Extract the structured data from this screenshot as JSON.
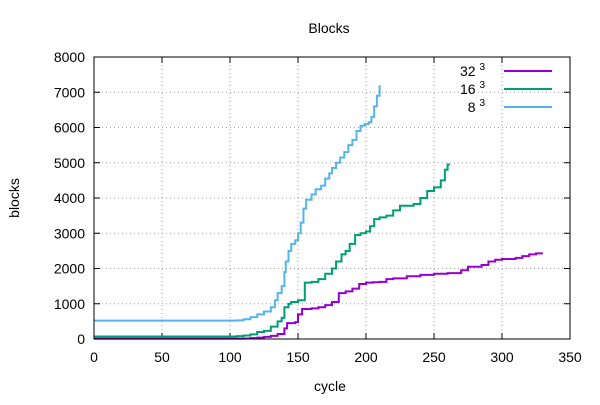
{
  "chart_data": {
    "type": "line",
    "title": "Blocks",
    "xlabel": "cycle",
    "ylabel": "blocks",
    "xlim": [
      0,
      350
    ],
    "ylim": [
      0,
      8000
    ],
    "x_ticks": [
      0,
      50,
      100,
      150,
      200,
      250,
      300,
      350
    ],
    "y_ticks": [
      0,
      1000,
      2000,
      3000,
      4000,
      5000,
      6000,
      7000,
      8000
    ],
    "grid": true,
    "grid_style": "dotted",
    "legend_position": "top-right",
    "series": [
      {
        "name": "32",
        "superscript": "3",
        "color": "#9400d3",
        "points": [
          [
            0,
            10
          ],
          [
            105,
            10
          ],
          [
            110,
            15
          ],
          [
            115,
            25
          ],
          [
            120,
            40
          ],
          [
            125,
            60
          ],
          [
            130,
            90
          ],
          [
            135,
            140
          ],
          [
            140,
            300
          ],
          [
            142,
            450
          ],
          [
            148,
            480
          ],
          [
            150,
            700
          ],
          [
            153,
            850
          ],
          [
            160,
            870
          ],
          [
            165,
            900
          ],
          [
            170,
            960
          ],
          [
            175,
            1050
          ],
          [
            180,
            1300
          ],
          [
            185,
            1350
          ],
          [
            190,
            1430
          ],
          [
            195,
            1560
          ],
          [
            200,
            1600
          ],
          [
            205,
            1610
          ],
          [
            210,
            1620
          ],
          [
            215,
            1700
          ],
          [
            220,
            1720
          ],
          [
            230,
            1780
          ],
          [
            240,
            1820
          ],
          [
            250,
            1850
          ],
          [
            260,
            1870
          ],
          [
            270,
            1950
          ],
          [
            275,
            2050
          ],
          [
            285,
            2100
          ],
          [
            290,
            2200
          ],
          [
            295,
            2250
          ],
          [
            300,
            2270
          ],
          [
            310,
            2300
          ],
          [
            315,
            2350
          ],
          [
            320,
            2400
          ],
          [
            325,
            2430
          ],
          [
            330,
            2430
          ]
        ]
      },
      {
        "name": "16",
        "superscript": "3",
        "color": "#009e73",
        "points": [
          [
            0,
            70
          ],
          [
            100,
            70
          ],
          [
            105,
            80
          ],
          [
            110,
            100
          ],
          [
            115,
            130
          ],
          [
            120,
            200
          ],
          [
            125,
            230
          ],
          [
            130,
            350
          ],
          [
            135,
            500
          ],
          [
            138,
            600
          ],
          [
            140,
            900
          ],
          [
            143,
            1000
          ],
          [
            145,
            1050
          ],
          [
            150,
            1100
          ],
          [
            155,
            1600
          ],
          [
            160,
            1620
          ],
          [
            165,
            1700
          ],
          [
            170,
            1850
          ],
          [
            175,
            2000
          ],
          [
            178,
            2200
          ],
          [
            182,
            2400
          ],
          [
            185,
            2500
          ],
          [
            188,
            2700
          ],
          [
            192,
            2950
          ],
          [
            196,
            3000
          ],
          [
            200,
            3050
          ],
          [
            203,
            3200
          ],
          [
            206,
            3400
          ],
          [
            210,
            3450
          ],
          [
            215,
            3500
          ],
          [
            220,
            3650
          ],
          [
            225,
            3780
          ],
          [
            230,
            3780
          ],
          [
            235,
            3830
          ],
          [
            240,
            4000
          ],
          [
            245,
            4200
          ],
          [
            250,
            4300
          ],
          [
            255,
            4500
          ],
          [
            258,
            4800
          ],
          [
            260,
            4950
          ],
          [
            261,
            4980
          ]
        ]
      },
      {
        "name": "8",
        "superscript": "3",
        "color": "#56b4e9",
        "points": [
          [
            0,
            520
          ],
          [
            100,
            520
          ],
          [
            105,
            530
          ],
          [
            110,
            560
          ],
          [
            115,
            620
          ],
          [
            120,
            700
          ],
          [
            125,
            780
          ],
          [
            130,
            900
          ],
          [
            133,
            1100
          ],
          [
            135,
            1300
          ],
          [
            138,
            1500
          ],
          [
            140,
            1900
          ],
          [
            141,
            2200
          ],
          [
            143,
            2500
          ],
          [
            145,
            2700
          ],
          [
            148,
            2800
          ],
          [
            150,
            3000
          ],
          [
            152,
            3300
          ],
          [
            154,
            3700
          ],
          [
            156,
            3950
          ],
          [
            160,
            4100
          ],
          [
            163,
            4250
          ],
          [
            167,
            4350
          ],
          [
            170,
            4550
          ],
          [
            173,
            4700
          ],
          [
            175,
            4850
          ],
          [
            178,
            5000
          ],
          [
            181,
            5150
          ],
          [
            184,
            5300
          ],
          [
            187,
            5500
          ],
          [
            190,
            5650
          ],
          [
            193,
            5900
          ],
          [
            196,
            6050
          ],
          [
            199,
            6100
          ],
          [
            202,
            6150
          ],
          [
            204,
            6300
          ],
          [
            206,
            6600
          ],
          [
            208,
            6900
          ],
          [
            210,
            7200
          ]
        ]
      }
    ]
  }
}
